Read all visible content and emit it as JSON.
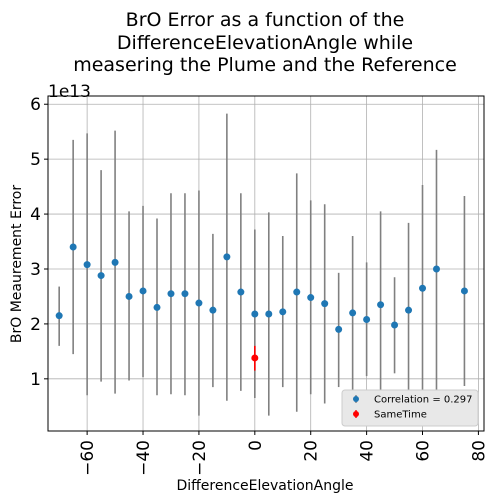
{
  "chart_data": {
    "type": "scatter",
    "title_lines": [
      "BrO Error as a function of the",
      "DifferenceElevationAngle while",
      "measering the Plume and the Reference"
    ],
    "xlabel": "DifferenceElevationAngle",
    "ylabel": "BrO Meaurement Error",
    "y_offset_text": "1e13",
    "xlim": [
      -74,
      82
    ],
    "ylim": [
      0.05,
      6.15
    ],
    "x_ticks": [
      -60,
      -40,
      -20,
      0,
      20,
      40,
      60,
      80
    ],
    "x_tick_labels": [
      "−60",
      "−40",
      "−20",
      "0",
      "20",
      "40",
      "60",
      "80"
    ],
    "y_ticks": [
      1,
      2,
      3,
      4,
      5,
      6
    ],
    "y_tick_labels": [
      "1",
      "2",
      "3",
      "4",
      "5",
      "6"
    ],
    "grid": true,
    "legend_position": "lower-right",
    "series": [
      {
        "name": "Correlation = 0.297",
        "color": "#1f77b4",
        "errorbar_color": "#808080",
        "points": [
          {
            "x": -70,
            "y": 2.15,
            "ylo": 1.6,
            "yhi": 2.68
          },
          {
            "x": -65,
            "y": 3.4,
            "ylo": 1.45,
            "yhi": 5.35
          },
          {
            "x": -60,
            "y": 3.08,
            "ylo": 0.7,
            "yhi": 5.47
          },
          {
            "x": -55,
            "y": 2.88,
            "ylo": 0.95,
            "yhi": 4.8
          },
          {
            "x": -50,
            "y": 3.12,
            "ylo": 0.73,
            "yhi": 5.52
          },
          {
            "x": -45,
            "y": 2.5,
            "ylo": 0.97,
            "yhi": 4.05
          },
          {
            "x": -40,
            "y": 2.6,
            "ylo": 1.03,
            "yhi": 4.15
          },
          {
            "x": -35,
            "y": 2.3,
            "ylo": 0.7,
            "yhi": 3.92
          },
          {
            "x": -30,
            "y": 2.55,
            "ylo": 0.72,
            "yhi": 4.38
          },
          {
            "x": -25,
            "y": 2.55,
            "ylo": 0.7,
            "yhi": 4.38
          },
          {
            "x": -20,
            "y": 2.38,
            "ylo": 0.33,
            "yhi": 4.43
          },
          {
            "x": -15,
            "y": 2.25,
            "ylo": 0.85,
            "yhi": 3.64
          },
          {
            "x": -10,
            "y": 3.22,
            "ylo": 0.6,
            "yhi": 5.83
          },
          {
            "x": -5,
            "y": 2.58,
            "ylo": 0.78,
            "yhi": 4.38
          },
          {
            "x": 0,
            "y": 2.18,
            "ylo": 0.65,
            "yhi": 3.72
          },
          {
            "x": 5,
            "y": 2.18,
            "ylo": 0.33,
            "yhi": 4.03
          },
          {
            "x": 10,
            "y": 2.22,
            "ylo": 0.85,
            "yhi": 3.6
          },
          {
            "x": 15,
            "y": 2.58,
            "ylo": 0.4,
            "yhi": 4.74
          },
          {
            "x": 20,
            "y": 2.48,
            "ylo": 0.72,
            "yhi": 4.25
          },
          {
            "x": 25,
            "y": 2.37,
            "ylo": 0.55,
            "yhi": 4.18
          },
          {
            "x": 30,
            "y": 1.9,
            "ylo": 0.85,
            "yhi": 2.93
          },
          {
            "x": 35,
            "y": 2.2,
            "ylo": 0.8,
            "yhi": 3.6
          },
          {
            "x": 40,
            "y": 2.08,
            "ylo": 1.05,
            "yhi": 3.12
          },
          {
            "x": 45,
            "y": 2.35,
            "ylo": 0.65,
            "yhi": 4.05
          },
          {
            "x": 50,
            "y": 1.98,
            "ylo": 1.1,
            "yhi": 2.85
          },
          {
            "x": 55,
            "y": 2.25,
            "ylo": 0.66,
            "yhi": 3.84
          },
          {
            "x": 60,
            "y": 2.65,
            "ylo": 0.76,
            "yhi": 4.53
          },
          {
            "x": 65,
            "y": 3.0,
            "ylo": 0.8,
            "yhi": 5.17
          },
          {
            "x": 75,
            "y": 2.6,
            "ylo": 0.87,
            "yhi": 4.33
          }
        ]
      },
      {
        "name": "SameTime",
        "color": "#ff0000",
        "errorbar_color": "#ff0000",
        "points": [
          {
            "x": 0,
            "y": 1.38,
            "ylo": 1.15,
            "yhi": 1.6
          }
        ]
      }
    ]
  }
}
